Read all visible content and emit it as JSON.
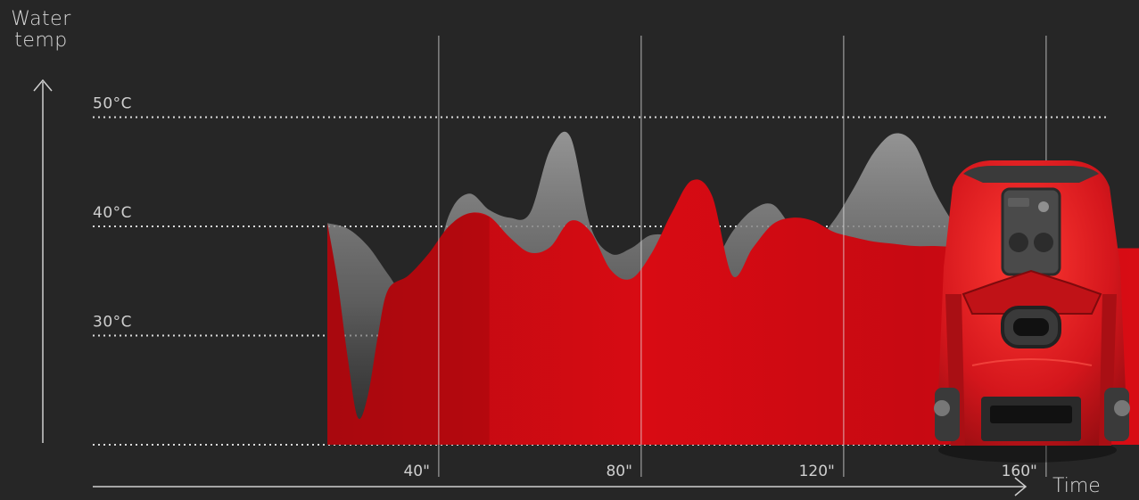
{
  "chart_data": {
    "type": "area",
    "ylabel": "Water temp",
    "xlabel": "Time",
    "x_ticks": [
      "40\"",
      "80\"",
      "120\"",
      "160\""
    ],
    "x_tick_values": [
      40,
      80,
      120,
      160
    ],
    "y_ticks": [
      "30°C",
      "40°C",
      "50°C"
    ],
    "y_tick_values": [
      30,
      40,
      50
    ],
    "xlim": [
      -28,
      200
    ],
    "ylim": [
      20,
      60
    ],
    "grid": true,
    "series": [
      {
        "color": "#8a8a8a",
        "x": [
          18,
          22,
          26,
          30,
          34,
          38,
          42,
          46,
          50,
          54,
          58,
          62,
          66,
          70,
          74,
          78,
          82,
          86,
          90,
          94,
          98,
          102,
          106,
          110,
          114,
          118,
          122,
          126,
          130,
          134,
          138,
          142,
          146,
          150,
          154,
          158,
          162,
          166,
          170,
          174,
          178,
          182,
          186,
          190,
          194,
          198
        ],
        "y": [
          40.3,
          39.8,
          38.2,
          35.6,
          33.2,
          34,
          41,
          43,
          41.5,
          40.8,
          41.2,
          47,
          48.2,
          40,
          37.5,
          38,
          39.2,
          38.8,
          36,
          36.4,
          39.5,
          41.5,
          42,
          39.8,
          38.6,
          40.5,
          43.5,
          46.8,
          48.5,
          47.5,
          43.2,
          40,
          36.8,
          33.4,
          32,
          31.5,
          31.2,
          31.3,
          31.5,
          31.8,
          32,
          32.2,
          32.4,
          32.6,
          32.8,
          33
        ]
      },
      {
        "color": "#d20a12",
        "x": [
          18,
          20,
          22,
          24,
          26,
          28,
          30,
          34,
          38,
          42,
          46,
          50,
          54,
          58,
          62,
          66,
          70,
          74,
          78,
          82,
          86,
          90,
          94,
          98,
          102,
          106,
          110,
          114,
          118,
          122,
          126,
          130,
          134,
          138,
          142,
          146,
          150,
          154,
          158,
          162,
          166,
          170,
          174,
          178,
          182,
          186,
          190,
          194,
          198
        ],
        "y": [
          40.3,
          35,
          28,
          22.5,
          24.5,
          30,
          34.2,
          35.5,
          37.5,
          40,
          41.2,
          40.9,
          39,
          37.6,
          38.1,
          40.5,
          39.5,
          36,
          35.2,
          37.5,
          41.2,
          44.2,
          42.8,
          35.5,
          38,
          40.2,
          40.8,
          40.5,
          39.5,
          39,
          38.6,
          38.4,
          38.2,
          38.2,
          38.1,
          38,
          38,
          38,
          38,
          38,
          38,
          38,
          38,
          38,
          38,
          38,
          38,
          38,
          38
        ]
      }
    ]
  },
  "device": {
    "name": "robotic-lawn-mower",
    "color": "#d4161c"
  }
}
